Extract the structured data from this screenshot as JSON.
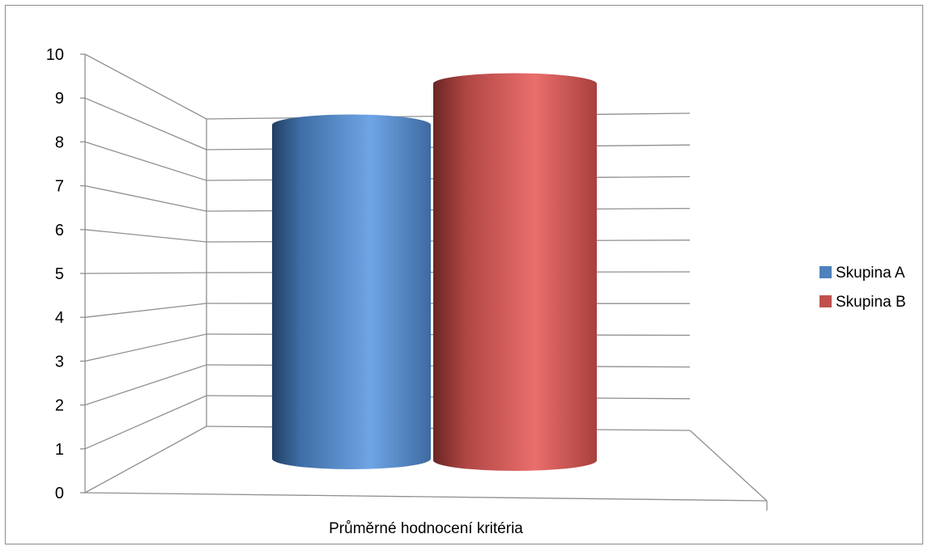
{
  "chart_data": {
    "type": "bar",
    "style": "3d-cylinder",
    "title": "",
    "categories": [
      "Průměrné hodnocení kritéria"
    ],
    "series": [
      {
        "name": "Skupina A",
        "values": [
          8.2
        ],
        "color": "#4f81bd"
      },
      {
        "name": "Skupina B",
        "values": [
          8.7
        ],
        "color": "#c0504d"
      }
    ],
    "ylim": [
      0,
      10
    ],
    "yticks": [
      "0",
      "1",
      "2",
      "3",
      "4",
      "5",
      "6",
      "7",
      "8",
      "9",
      "10"
    ],
    "grid": true,
    "legend_position": "right"
  }
}
